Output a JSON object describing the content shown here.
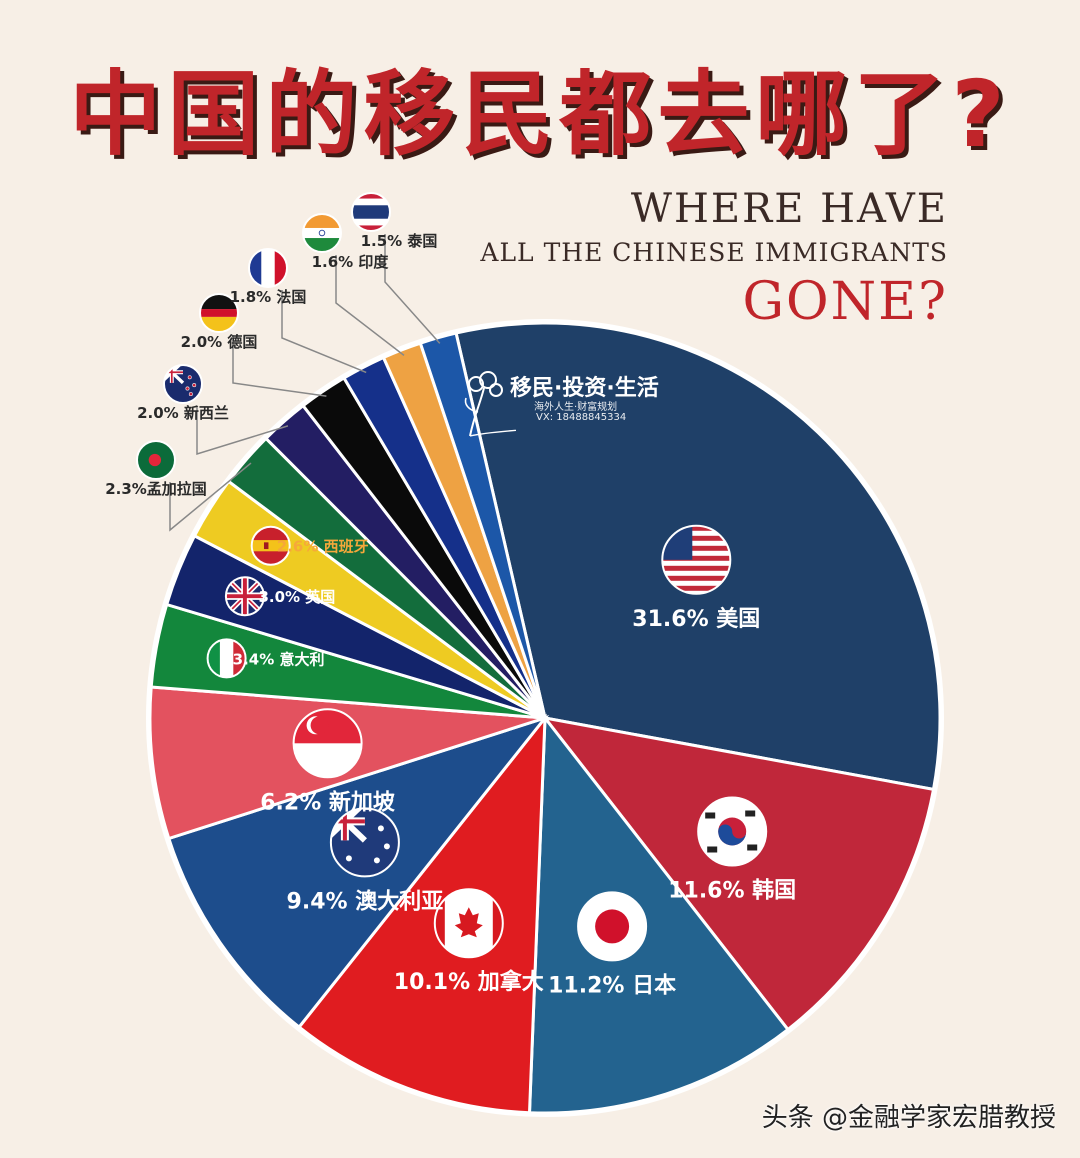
{
  "title": "中国的移民都去哪了?",
  "subtitle_line1": "WHERE HAVE",
  "subtitle_line2": "ALL THE CHINESE IMMIGRANTS",
  "subtitle_line3": "GONE?",
  "logo": {
    "main": "移民·投资·生活",
    "sub": "海外人生·财富规划",
    "contact": "VX: 18488845334"
  },
  "watermark": "头条 @金融学家宏腊教授",
  "chart_data": {
    "type": "pie",
    "unit": "%",
    "slices": [
      {
        "label": "31.6% 美国",
        "country": "美国",
        "value": 31.6,
        "color": "#1f4068",
        "flag": "us-flag-icon"
      },
      {
        "label": "11.6% 韩国",
        "country": "韩国",
        "value": 11.6,
        "color": "#c0273a",
        "flag": "kr-flag-icon"
      },
      {
        "label": "11.2% 日本",
        "country": "日本",
        "value": 11.2,
        "color": "#23638f",
        "flag": "jp-flag-icon"
      },
      {
        "label": "10.1% 加拿大",
        "country": "加拿大",
        "value": 10.1,
        "color": "#e01c20",
        "flag": "ca-flag-icon"
      },
      {
        "label": "9.4% 澳大利亚",
        "country": "澳大利亚",
        "value": 9.4,
        "color": "#1d4d8c",
        "flag": "au-flag-icon"
      },
      {
        "label": "6.2% 新加坡",
        "country": "新加坡",
        "value": 6.2,
        "color": "#e3525f",
        "flag": "sg-flag-icon"
      },
      {
        "label": "3.4% 意大利",
        "country": "意大利",
        "value": 3.4,
        "color": "#13873c",
        "flag": "it-flag-icon"
      },
      {
        "label": "3.0% 英国",
        "country": "英国",
        "value": 3.0,
        "color": "#13246b",
        "flag": "gb-flag-icon"
      },
      {
        "label": "2.6% 西班牙",
        "country": "西班牙",
        "value": 2.6,
        "color": "#eecb22",
        "flag": "es-flag-icon"
      },
      {
        "label": "2.3%孟加拉国",
        "country": "孟加拉国",
        "value": 2.3,
        "color": "#136d3c",
        "flag": "bd-flag-icon"
      },
      {
        "label": "2.0% 新西兰",
        "country": "新西兰",
        "value": 2.0,
        "color": "#231e63",
        "flag": "nz-flag-icon"
      },
      {
        "label": "2.0% 德国",
        "country": "德国",
        "value": 2.0,
        "color": "#0a0a0a",
        "flag": "de-flag-icon"
      },
      {
        "label": "1.8% 法国",
        "country": "法国",
        "value": 1.8,
        "color": "#15308a",
        "flag": "fr-flag-icon"
      },
      {
        "label": "1.6% 印度",
        "country": "印度",
        "value": 1.6,
        "color": "#eea243",
        "flag": "in-flag-icon"
      },
      {
        "label": "1.5% 泰国",
        "country": "泰国",
        "value": 1.5,
        "color": "#1c57a8",
        "flag": "th-flag-icon"
      }
    ]
  }
}
